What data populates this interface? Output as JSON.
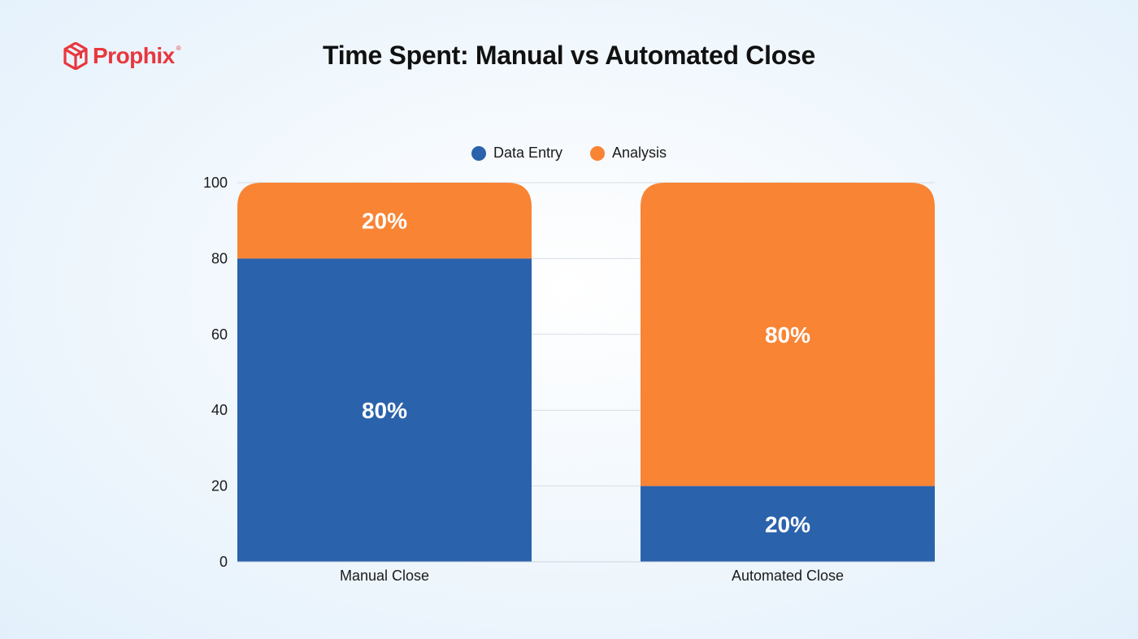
{
  "brand": {
    "name": "Prophix",
    "registered_mark": "®",
    "color": "#e8373e"
  },
  "title": "Time Spent: Manual vs Automated Close",
  "legend": [
    {
      "label": "Data Entry",
      "color": "#2b62ac"
    },
    {
      "label": "Analysis",
      "color": "#f98434"
    }
  ],
  "chart_data": {
    "type": "bar",
    "stacked": true,
    "title": "Time Spent: Manual vs Automated Close",
    "xlabel": "",
    "ylabel": "",
    "categories": [
      "Manual Close",
      "Automated Close"
    ],
    "series": [
      {
        "name": "Data Entry",
        "values": [
          80,
          20
        ],
        "labels": [
          "80%",
          "20%"
        ],
        "color": "#2b62ac"
      },
      {
        "name": "Analysis",
        "values": [
          20,
          80
        ],
        "labels": [
          "20%",
          "80%"
        ],
        "color": "#f98434"
      }
    ],
    "ylim": [
      0,
      100
    ],
    "yticks": [
      "0",
      "20",
      "40",
      "60",
      "80",
      "100"
    ],
    "grid": true,
    "legend_position": "top-center"
  }
}
